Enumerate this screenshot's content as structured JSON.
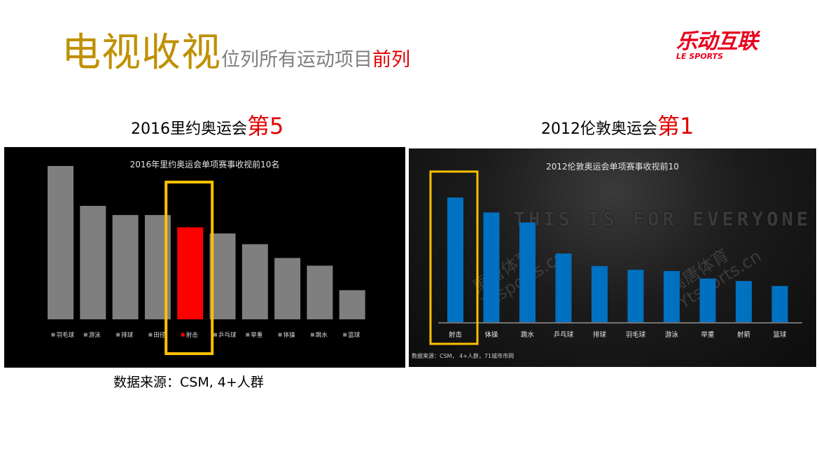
{
  "slide": {
    "title_big": "电视收视",
    "title_mid": "位列所有运动项目",
    "title_red": "前列",
    "logo_cn": "乐动互联",
    "logo_en": "LE SPORTS",
    "source": "数据来源：CSM, 4+人群",
    "colors": {
      "title_gold": "#bf9000",
      "accent_red": "#e00000",
      "logo_red": "#e8001c",
      "bar_blue": "#0070c0",
      "bar_grey": "#7f7f7f",
      "highlight_box": "#ffc000"
    }
  },
  "left": {
    "subtitle": "2016里约奥运会",
    "rank": "第5"
  },
  "right": {
    "subtitle": "2012伦敦奥运会",
    "rank": "第1",
    "background_banner": "THIS IS FOR EVERYONE",
    "watermark_1": "禹唐体育",
    "watermark_2": "Ytsports.cn",
    "source_small": "数据来源：CSM，  4+人群，71城市市网"
  },
  "chart_data": [
    {
      "type": "bar",
      "title": "2016年里约奥运会单项赛事收视前10名",
      "categories": [
        "羽毛球",
        "游泳",
        "排球",
        "田径",
        "射击",
        "乒乓球",
        "举重",
        "体操",
        "跳水",
        "篮球"
      ],
      "values": [
        100,
        74,
        68,
        68,
        60,
        56,
        49,
        40,
        35,
        19
      ],
      "highlight": "射击",
      "highlight_color": "#ff0000",
      "series_color": "#7f7f7f",
      "legend_style": "square markers before each category label",
      "ylim": [
        0,
        100
      ],
      "grid": false
    },
    {
      "type": "bar",
      "title": "2012伦敦奥运会单项赛事收视前10",
      "categories": [
        "射击",
        "体操",
        "跳水",
        "乒乓球",
        "排球",
        "羽毛球",
        "游泳",
        "举重",
        "射箭",
        "篮球"
      ],
      "values": [
        100,
        88,
        80,
        55,
        45,
        42,
        41,
        35,
        33,
        29
      ],
      "highlight": "射击",
      "series_color": "#0070c0",
      "ylim": [
        0,
        100
      ],
      "grid": false
    }
  ]
}
